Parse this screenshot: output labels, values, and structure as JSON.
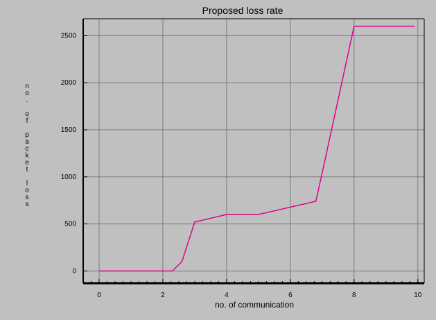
{
  "chart_data": {
    "type": "line",
    "title": "Proposed loss rate",
    "xlabel": "no. of communication",
    "ylabel": "no. of packet loss",
    "xlim": [
      -0.5,
      10.2
    ],
    "ylim": [
      -130,
      2680
    ],
    "xticks": [
      0,
      2,
      4,
      6,
      8,
      10
    ],
    "yticks": [
      0,
      500,
      1000,
      1500,
      2000,
      2500
    ],
    "x_minor_step": 0.25,
    "grid": true,
    "legend": "none",
    "colors": {
      "background": "#c0c0c0",
      "line": "#e0008c",
      "grid": "#7a7a7a",
      "axis": "#000000"
    },
    "series": [
      {
        "x": [
          0,
          2.3,
          2.6,
          3.0,
          4.0,
          5.0,
          6.8,
          7.1,
          8.0,
          9.9
        ],
        "y": [
          0,
          0,
          100,
          520,
          600,
          600,
          740,
          1200,
          2600,
          2600
        ]
      }
    ]
  }
}
